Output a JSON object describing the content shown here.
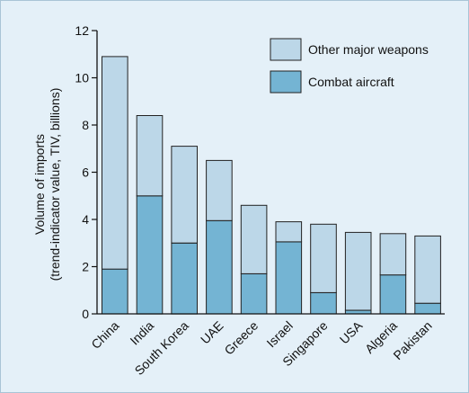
{
  "colors": {
    "background": "#e4f0f8",
    "other_major_weapons": "#bcd7e8",
    "combat_aircraft": "#74b4d3",
    "stroke": "#222222"
  },
  "chart_data": {
    "type": "bar",
    "stacked": true,
    "categories": [
      "China",
      "India",
      "South Korea",
      "UAE",
      "Greece",
      "Israel",
      "Singapore",
      "USA",
      "Algeria",
      "Pakistan"
    ],
    "series": [
      {
        "name": "Combat aircraft",
        "values": [
          1.9,
          5.0,
          3.0,
          3.95,
          1.7,
          3.05,
          0.9,
          0.15,
          1.65,
          0.45
        ]
      },
      {
        "name": "Other major weapons",
        "values": [
          9.0,
          3.4,
          4.1,
          2.55,
          2.9,
          0.85,
          2.9,
          3.3,
          1.75,
          2.85
        ]
      }
    ],
    "ylabel": [
      "Volume of imports",
      "(trend-indicator value, TIV, billions)"
    ],
    "xlabel": "",
    "ylim": [
      0,
      12
    ],
    "yticks": [
      0,
      2,
      4,
      6,
      8,
      10,
      12
    ],
    "legend": {
      "position": "top-right",
      "entries": [
        "Other major weapons",
        "Combat aircraft"
      ]
    },
    "grid": false
  }
}
